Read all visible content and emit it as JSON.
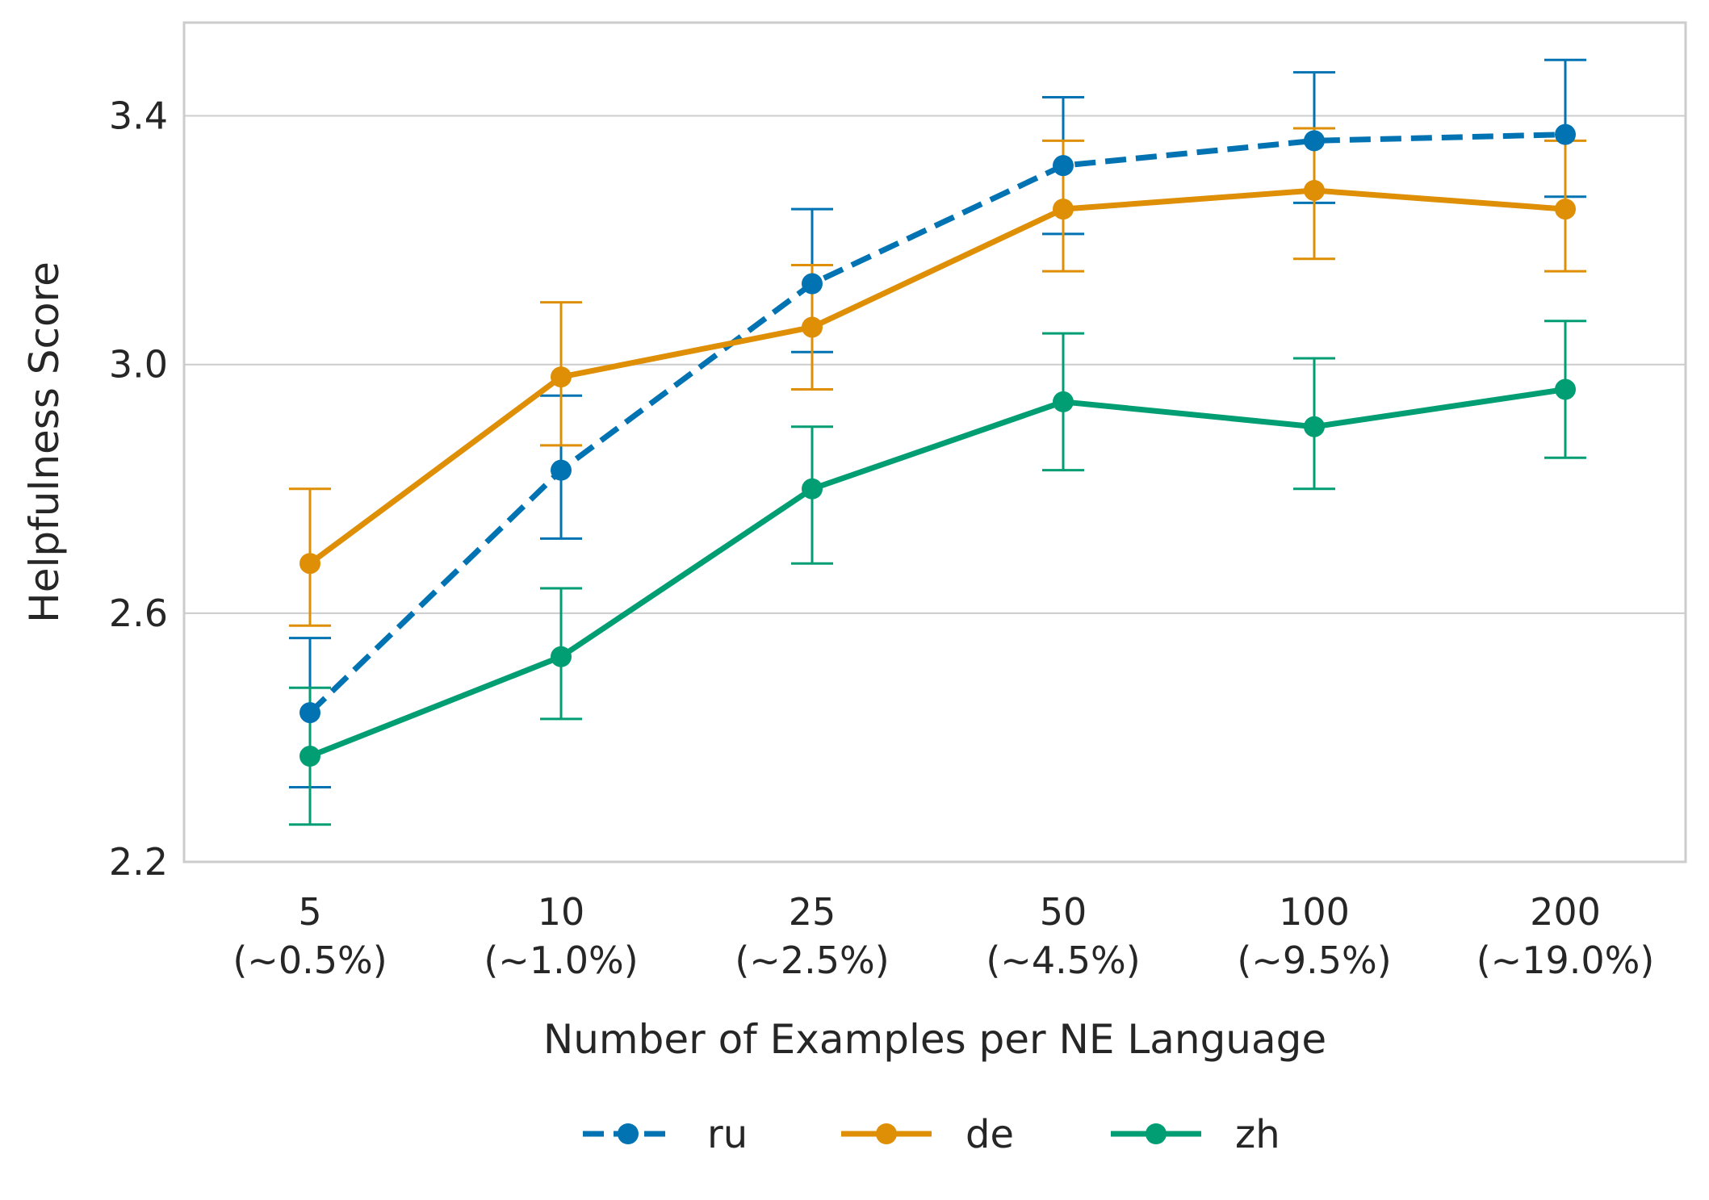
{
  "chart_data": {
    "type": "line",
    "title": "",
    "xlabel": "Number of Examples per NE Language",
    "ylabel": "Helpfulness Score",
    "categories": [
      {
        "value": "5",
        "pct": "(~0.5%)"
      },
      {
        "value": "10",
        "pct": "(~1.0%)"
      },
      {
        "value": "25",
        "pct": "(~2.5%)"
      },
      {
        "value": "50",
        "pct": "(~4.5%)"
      },
      {
        "value": "100",
        "pct": "(~9.5%)"
      },
      {
        "value": "200",
        "pct": "(~19.0%)"
      }
    ],
    "ylim": [
      2.2,
      3.55
    ],
    "yticks": [
      "2.2",
      "2.6",
      "3.0",
      "3.4"
    ],
    "grid": "horizontal",
    "legend_position": "bottom-center",
    "series": [
      {
        "name": "ru",
        "color": "#0173b2",
        "dashed": true,
        "values": [
          2.44,
          2.83,
          3.13,
          3.32,
          3.36,
          3.37
        ],
        "err_low": [
          2.32,
          2.72,
          3.02,
          3.21,
          3.26,
          3.27
        ],
        "err_high": [
          2.56,
          2.95,
          3.25,
          3.43,
          3.47,
          3.49
        ]
      },
      {
        "name": "de",
        "color": "#de8f05",
        "dashed": false,
        "values": [
          2.68,
          2.98,
          3.06,
          3.25,
          3.28,
          3.25
        ],
        "err_low": [
          2.58,
          2.87,
          2.96,
          3.15,
          3.17,
          3.15
        ],
        "err_high": [
          2.8,
          3.1,
          3.16,
          3.36,
          3.38,
          3.36
        ]
      },
      {
        "name": "zh",
        "color": "#029e73",
        "dashed": false,
        "values": [
          2.37,
          2.53,
          2.8,
          2.94,
          2.9,
          2.96
        ],
        "err_low": [
          2.26,
          2.43,
          2.68,
          2.83,
          2.8,
          2.85
        ],
        "err_high": [
          2.48,
          2.64,
          2.9,
          3.05,
          3.01,
          3.07
        ]
      }
    ]
  }
}
